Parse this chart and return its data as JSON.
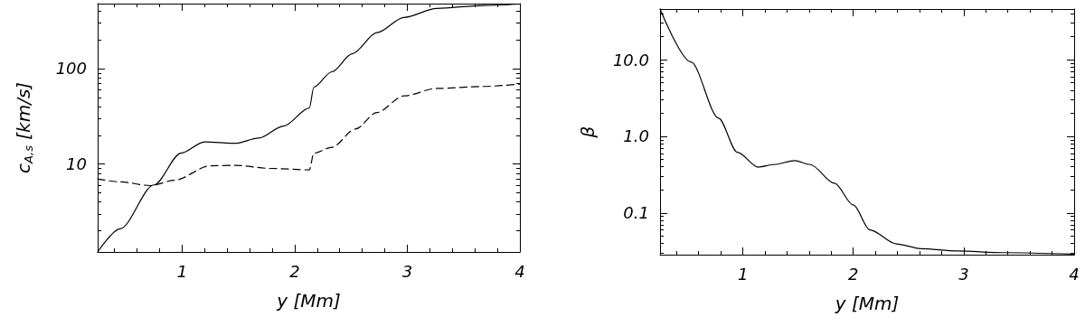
{
  "chart_data": [
    {
      "type": "line",
      "xlabel": "y [Mm]",
      "ylabel": "c$_{A,s}$ [km/s]",
      "log": "y",
      "grid": false,
      "marker": "none",
      "xlim": [
        0.25,
        4
      ],
      "xticks": [
        1,
        2,
        3,
        4
      ],
      "ylim": [
        1.2,
        480
      ],
      "yticks": [
        10,
        100
      ],
      "series": [
        {
          "color": "#000000",
          "line_style": "solid",
          "x": [
            0.25,
            0.45,
            0.75,
            0.99,
            1.2,
            1.47,
            1.68,
            1.9,
            2.13,
            2.17,
            2.33,
            2.51,
            2.73,
            2.97,
            3.26,
            3.67,
            4.0
          ],
          "values": [
            1.2,
            2.1,
            6.05,
            13,
            17.1,
            16.5,
            18.7,
            25,
            38.7,
            64,
            92.7,
            143,
            238,
            344,
            427,
            459,
            475
          ]
        },
        {
          "color": "#000000",
          "line_style": "dashed",
          "x": [
            0.25,
            0.45,
            0.72,
            0.93,
            1.25,
            1.47,
            1.79,
            2.13,
            2.17,
            2.33,
            2.54,
            2.73,
            2.97,
            3.26,
            3.67,
            4.0
          ],
          "values": [
            7.0,
            6.5,
            5.95,
            6.75,
            9.6,
            9.7,
            9.0,
            8.7,
            13,
            15,
            23.3,
            34.7,
            51.8,
            62,
            65,
            69
          ]
        }
      ]
    },
    {
      "type": "line",
      "xlabel": "y [Mm]",
      "ylabel": "β",
      "log": "y",
      "grid": false,
      "marker": "none",
      "xlim": [
        0.25,
        4
      ],
      "xticks": [
        1,
        2,
        3,
        4
      ],
      "ylim": [
        0.0285,
        46
      ],
      "yticks": [
        {
          "value": 0.1,
          "label": "0.1"
        },
        {
          "value": 1,
          "label": "1.0"
        },
        {
          "value": 10,
          "label": "10.0"
        }
      ],
      "series": [
        {
          "color": "#000000",
          "line_style": "solid",
          "x": [
            0.25,
            0.53,
            0.78,
            0.95,
            1.14,
            1.28,
            1.47,
            1.61,
            1.83,
            2.0,
            2.15,
            2.39,
            2.61,
            2.94,
            3.36,
            4.0
          ],
          "values": [
            46,
            9.35,
            1.73,
            0.62,
            0.396,
            0.428,
            0.483,
            0.428,
            0.244,
            0.127,
            0.06,
            0.0394,
            0.0342,
            0.0318,
            0.0303,
            0.029
          ]
        }
      ]
    }
  ]
}
